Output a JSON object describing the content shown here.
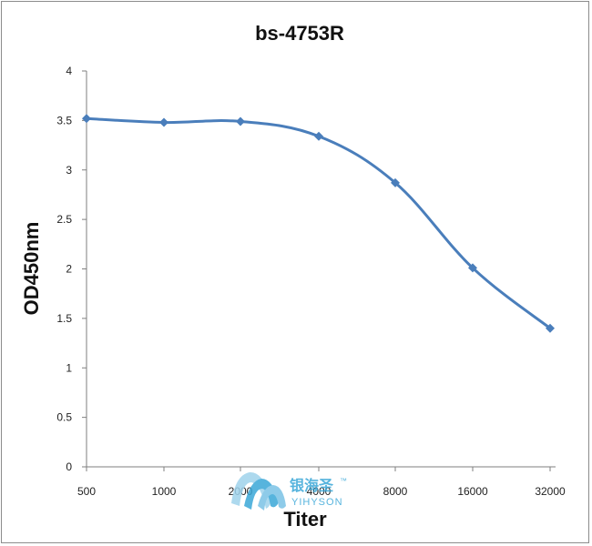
{
  "chart_data": {
    "type": "line",
    "title": "bs-4753R",
    "xlabel": "Titer",
    "ylabel": "OD450nm",
    "categories": [
      "500",
      "1000",
      "2000",
      "4000",
      "8000",
      "16000",
      "32000"
    ],
    "values": [
      3.52,
      3.48,
      3.49,
      3.34,
      2.87,
      2.01,
      1.4
    ],
    "ylim": [
      0,
      4
    ],
    "yticks": [
      "0",
      "0.5",
      "1",
      "1.5",
      "2",
      "2.5",
      "3",
      "3.5",
      "4"
    ],
    "grid": false,
    "legend": "none",
    "line_color": "#4a7ebb"
  },
  "watermark": {
    "name_cn": "银海圣",
    "name_en": "YIHYSON",
    "tm": "™"
  }
}
